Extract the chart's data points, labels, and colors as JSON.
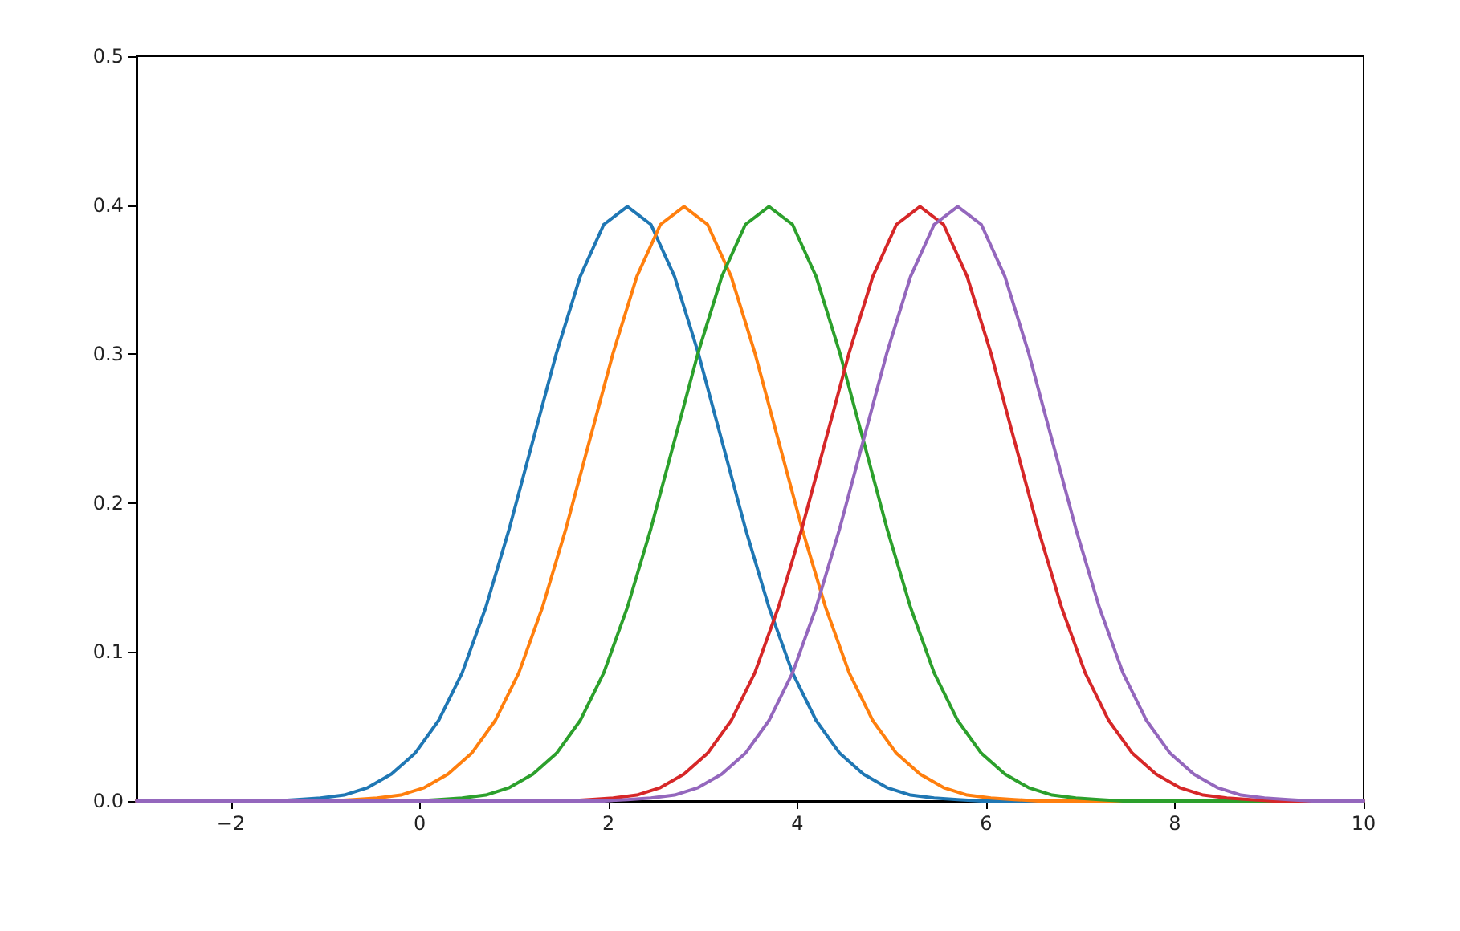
{
  "chart_data": {
    "type": "line",
    "xlim": [
      -3,
      10
    ],
    "ylim": [
      0,
      0.5
    ],
    "xticks": [
      {
        "value": -2,
        "label": "−2"
      },
      0,
      2,
      4,
      6,
      8,
      10
    ],
    "yticks": [
      {
        "value": 0,
        "label": "0.0"
      },
      {
        "value": 0.1,
        "label": "0.1"
      },
      {
        "value": 0.2,
        "label": "0.2"
      },
      {
        "value": 0.3,
        "label": "0.3"
      },
      {
        "value": 0.4,
        "label": "0.4"
      },
      {
        "value": 0.5,
        "label": "0.5"
      }
    ],
    "grid": false,
    "marker": "none",
    "line_style": "solid",
    "series": [
      {
        "color": "#1f77b4",
        "x": [
          -3,
          -1.8,
          -1.55,
          -1.3,
          -1.05,
          -0.8,
          -0.55,
          -0.3,
          -0.05,
          0.2,
          0.45,
          0.7,
          0.95,
          1.2,
          1.45,
          1.7,
          1.95,
          2.2,
          2.45,
          2.7,
          2.95,
          3.2,
          3.45,
          3.7,
          3.95,
          4.2,
          4.45,
          4.7,
          4.95,
          5.2,
          5.45,
          5.7,
          5.95,
          6.2,
          10
        ],
        "values": [
          0,
          0,
          0,
          0.001,
          0.002,
          0.004,
          0.009,
          0.018,
          0.032,
          0.054,
          0.086,
          0.13,
          0.183,
          0.242,
          0.301,
          0.352,
          0.387,
          0.399,
          0.387,
          0.352,
          0.301,
          0.242,
          0.183,
          0.13,
          0.086,
          0.054,
          0.032,
          0.018,
          0.009,
          0.004,
          0.002,
          0.001,
          0,
          0,
          0
        ]
      },
      {
        "color": "#ff7f0e",
        "x": [
          -3,
          -1.2,
          -0.95,
          -0.7,
          -0.45,
          -0.2,
          0.05,
          0.3,
          0.55,
          0.8,
          1.05,
          1.3,
          1.55,
          1.8,
          2.05,
          2.3,
          2.55,
          2.8,
          3.05,
          3.3,
          3.55,
          3.8,
          4.05,
          4.3,
          4.55,
          4.8,
          5.05,
          5.3,
          5.55,
          5.8,
          6.05,
          6.3,
          6.55,
          6.8,
          10
        ],
        "values": [
          0,
          0,
          0,
          0.001,
          0.002,
          0.004,
          0.009,
          0.018,
          0.032,
          0.054,
          0.086,
          0.13,
          0.183,
          0.242,
          0.301,
          0.352,
          0.387,
          0.399,
          0.387,
          0.352,
          0.301,
          0.242,
          0.183,
          0.13,
          0.086,
          0.054,
          0.032,
          0.018,
          0.009,
          0.004,
          0.002,
          0.001,
          0,
          0,
          0
        ]
      },
      {
        "color": "#2ca02c",
        "x": [
          -3,
          -0.3,
          -0.05,
          0.2,
          0.45,
          0.7,
          0.95,
          1.2,
          1.45,
          1.7,
          1.95,
          2.2,
          2.45,
          2.7,
          2.95,
          3.2,
          3.45,
          3.7,
          3.95,
          4.2,
          4.45,
          4.7,
          4.95,
          5.2,
          5.45,
          5.7,
          5.95,
          6.2,
          6.45,
          6.7,
          6.95,
          7.2,
          7.45,
          7.7,
          10
        ],
        "values": [
          0,
          0,
          0,
          0.001,
          0.002,
          0.004,
          0.009,
          0.018,
          0.032,
          0.054,
          0.086,
          0.13,
          0.183,
          0.242,
          0.301,
          0.352,
          0.387,
          0.399,
          0.387,
          0.352,
          0.301,
          0.242,
          0.183,
          0.13,
          0.086,
          0.054,
          0.032,
          0.018,
          0.009,
          0.004,
          0.002,
          0.001,
          0,
          0,
          0
        ]
      },
      {
        "color": "#d62728",
        "x": [
          -3,
          1.3,
          1.55,
          1.8,
          2.05,
          2.3,
          2.55,
          2.8,
          3.05,
          3.3,
          3.55,
          3.8,
          4.05,
          4.3,
          4.55,
          4.8,
          5.05,
          5.3,
          5.55,
          5.8,
          6.05,
          6.3,
          6.55,
          6.8,
          7.05,
          7.3,
          7.55,
          7.8,
          8.05,
          8.3,
          8.55,
          8.8,
          9.05,
          9.3,
          10
        ],
        "values": [
          0,
          0,
          0,
          0.001,
          0.002,
          0.004,
          0.009,
          0.018,
          0.032,
          0.054,
          0.086,
          0.13,
          0.183,
          0.242,
          0.301,
          0.352,
          0.387,
          0.399,
          0.387,
          0.352,
          0.301,
          0.242,
          0.183,
          0.13,
          0.086,
          0.054,
          0.032,
          0.018,
          0.009,
          0.004,
          0.002,
          0.001,
          0,
          0,
          0
        ]
      },
      {
        "color": "#9467bd",
        "x": [
          -3,
          1.7,
          1.95,
          2.2,
          2.45,
          2.7,
          2.95,
          3.2,
          3.45,
          3.7,
          3.95,
          4.2,
          4.45,
          4.7,
          4.95,
          5.2,
          5.45,
          5.7,
          5.95,
          6.2,
          6.45,
          6.7,
          6.95,
          7.2,
          7.45,
          7.7,
          7.95,
          8.2,
          8.45,
          8.7,
          8.95,
          9.2,
          9.45,
          9.7,
          10
        ],
        "values": [
          0,
          0,
          0,
          0.001,
          0.002,
          0.004,
          0.009,
          0.018,
          0.032,
          0.054,
          0.086,
          0.13,
          0.183,
          0.242,
          0.301,
          0.352,
          0.387,
          0.399,
          0.387,
          0.352,
          0.301,
          0.242,
          0.183,
          0.13,
          0.086,
          0.054,
          0.032,
          0.018,
          0.009,
          0.004,
          0.002,
          0.001,
          0,
          0,
          0
        ]
      }
    ]
  }
}
